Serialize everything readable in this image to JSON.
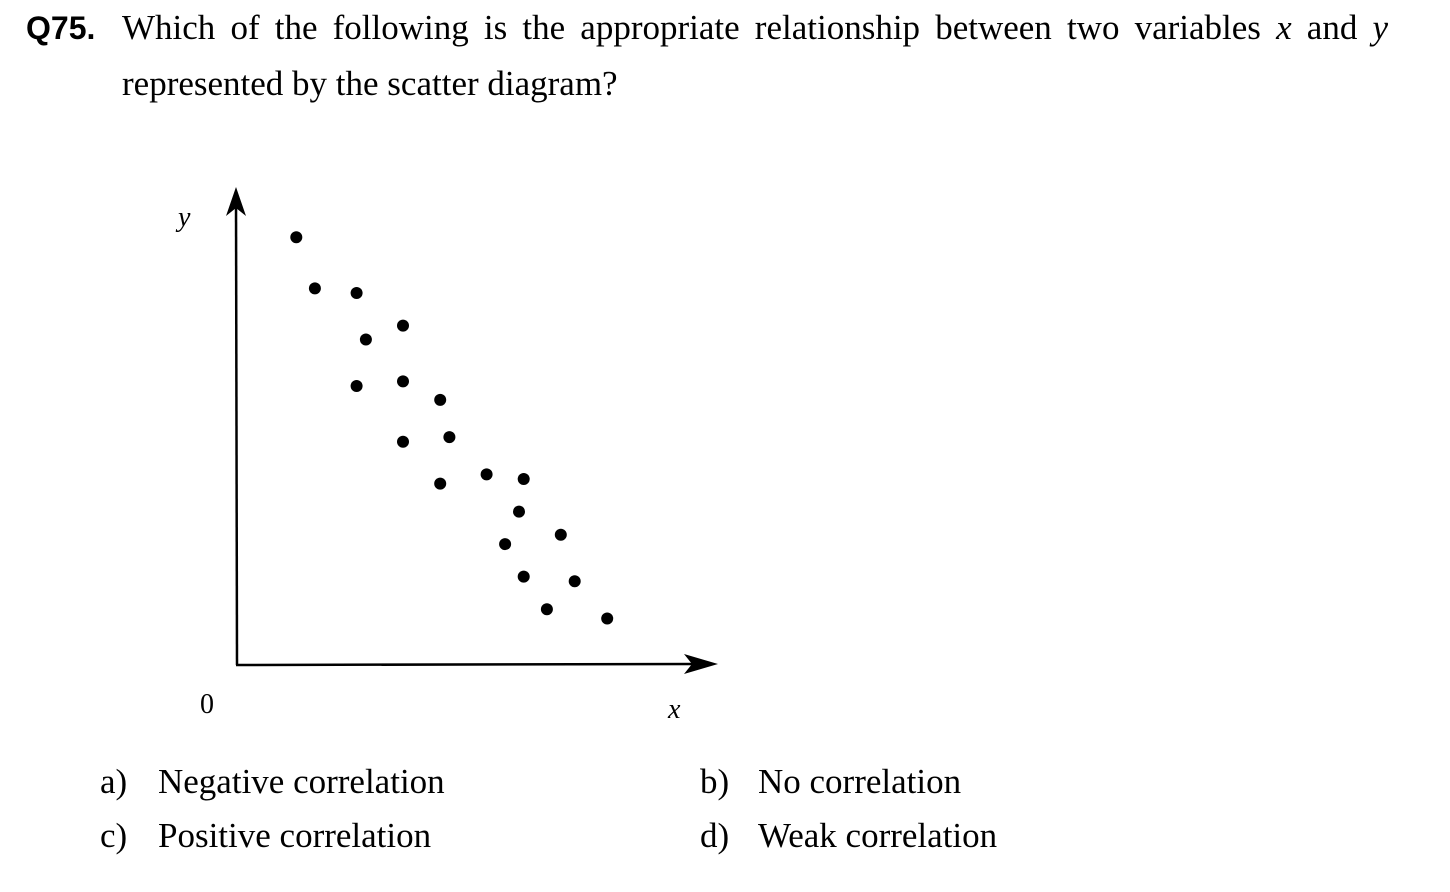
{
  "question": {
    "number": "Q75.",
    "line1_pre": "Which of the following is the appropriate relationship between two variables",
    "var_x": "x",
    "conj": "and",
    "var_y": "y",
    "line2": "represented by the scatter diagram?"
  },
  "chart_data": {
    "type": "scatter",
    "xlabel": "x",
    "ylabel": "y",
    "origin_label": "0",
    "grid": false,
    "legend": "none",
    "xlim": [
      0,
      10
    ],
    "ylim": [
      0,
      10
    ],
    "series": [
      {
        "points": [
          [
            1.3,
            9.2
          ],
          [
            1.7,
            8.1
          ],
          [
            2.6,
            8.0
          ],
          [
            2.8,
            7.0
          ],
          [
            2.6,
            6.0
          ],
          [
            3.6,
            7.3
          ],
          [
            3.6,
            6.1
          ],
          [
            3.6,
            4.8
          ],
          [
            4.4,
            5.7
          ],
          [
            4.6,
            4.9
          ],
          [
            4.4,
            3.9
          ],
          [
            5.4,
            4.1
          ],
          [
            6.2,
            4.0
          ],
          [
            6.1,
            3.3
          ],
          [
            5.8,
            2.6
          ],
          [
            6.2,
            1.9
          ],
          [
            7.0,
            2.8
          ],
          [
            7.3,
            1.8
          ],
          [
            6.7,
            1.2
          ],
          [
            8.0,
            1.0
          ]
        ]
      }
    ]
  },
  "options": [
    {
      "letter": "a)",
      "text": "Negative correlation"
    },
    {
      "letter": "b)",
      "text": "No correlation"
    },
    {
      "letter": "c)",
      "text": "Positive correlation"
    },
    {
      "letter": "d)",
      "text": "Weak correlation"
    }
  ]
}
